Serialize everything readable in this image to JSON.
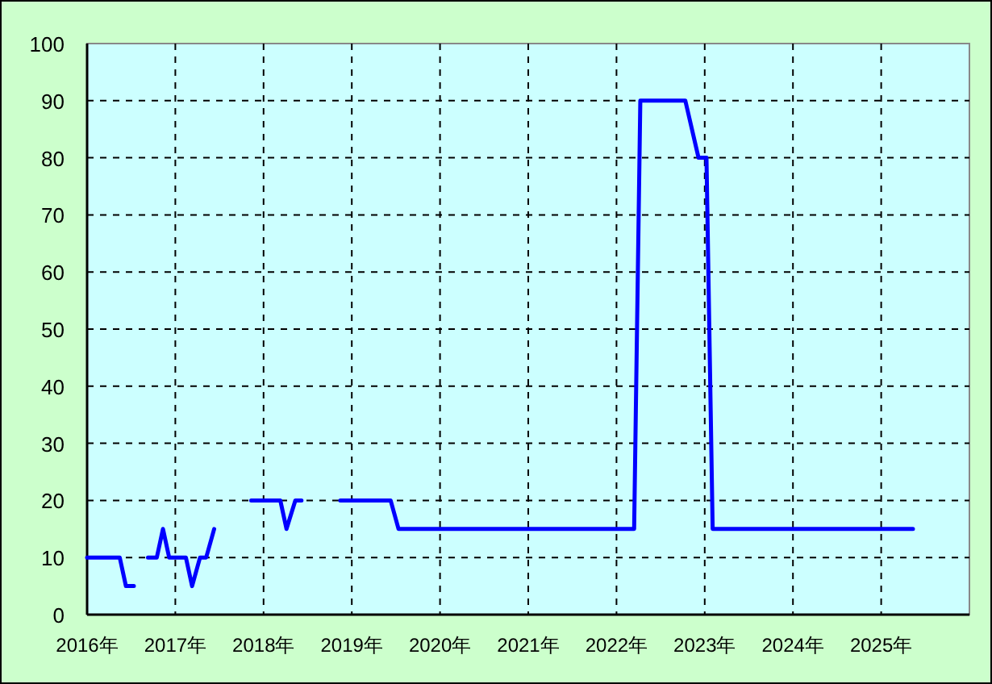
{
  "chart_data": {
    "type": "line",
    "x": [
      2016.0,
      2016.37,
      2016.44,
      2016.53,
      null,
      2016.69,
      2016.79,
      2016.86,
      2016.93,
      2017.12,
      2017.19,
      2017.28,
      2017.35,
      2017.44,
      null,
      2017.86,
      2018.19,
      2018.26,
      2018.36,
      2018.43,
      null,
      2018.87,
      2019.44,
      2019.53,
      2022.2,
      2022.27,
      2022.78,
      2022.93,
      2023.02,
      2023.09,
      2025.36
    ],
    "series": [
      {
        "color": "#0000ff",
        "values": [
          10,
          10,
          5,
          5,
          null,
          10,
          10,
          15,
          10,
          10,
          5,
          10,
          10,
          15,
          null,
          20,
          20,
          15,
          20,
          20,
          null,
          20,
          20,
          15,
          15,
          90,
          90,
          80,
          80,
          15,
          15
        ]
      }
    ],
    "xlim": [
      2016,
      2026
    ],
    "xticks": [
      {
        "value": 2016,
        "label": "2016年"
      },
      {
        "value": 2017,
        "label": "2017年"
      },
      {
        "value": 2018,
        "label": "2018年"
      },
      {
        "value": 2019,
        "label": "2019年"
      },
      {
        "value": 2020,
        "label": "2020年"
      },
      {
        "value": 2021,
        "label": "2021年"
      },
      {
        "value": 2022,
        "label": "2022年"
      },
      {
        "value": 2023,
        "label": "2023年"
      },
      {
        "value": 2024,
        "label": "2024年"
      },
      {
        "value": 2025,
        "label": "2025年"
      }
    ],
    "ylim": [
      0,
      100
    ],
    "yticks": [
      0,
      10,
      20,
      30,
      40,
      50,
      60,
      70,
      80,
      90,
      100
    ],
    "grid": true,
    "marker": "none",
    "line_style": "solid"
  }
}
